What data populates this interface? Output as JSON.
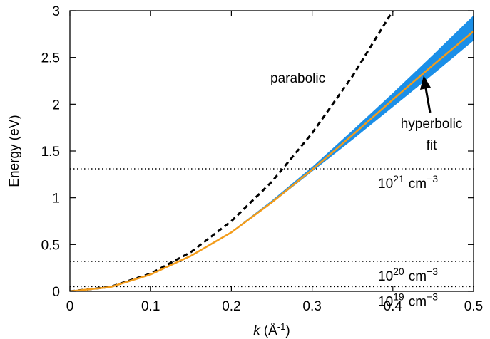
{
  "chart_data": {
    "type": "line",
    "xlabel": {
      "symbol": "k",
      "open": "(Å",
      "exponent": "-1",
      "close": ")"
    },
    "ylabel": "Energy (eV)",
    "xlim": [
      0,
      0.5
    ],
    "ylim": [
      0,
      3
    ],
    "xticks": [
      0,
      0.1,
      0.2,
      0.3,
      0.4,
      0.5
    ],
    "yticks": [
      0,
      0.5,
      1,
      1.5,
      2,
      2.5,
      3
    ],
    "series": [
      {
        "name": "parabolic",
        "color": "#000000",
        "dashed": true,
        "x": [
          0,
          0.05,
          0.1,
          0.15,
          0.2,
          0.25,
          0.3,
          0.35,
          0.4
        ],
        "values": [
          0,
          0.047,
          0.19,
          0.42,
          0.75,
          1.17,
          1.69,
          2.3,
          3.0
        ]
      },
      {
        "name": "hyperbolic fit",
        "color": "#f39c1a",
        "band_color": "#1b8fe8",
        "x": [
          0,
          0.05,
          0.1,
          0.15,
          0.2,
          0.25,
          0.3,
          0.35,
          0.4,
          0.45,
          0.5
        ],
        "values": [
          0,
          0.045,
          0.18,
          0.38,
          0.63,
          0.95,
          1.3,
          1.67,
          2.05,
          2.42,
          2.78
        ],
        "band_x": [
          0.2,
          0.25,
          0.3,
          0.35,
          0.4,
          0.45,
          0.5
        ],
        "band_lower": [
          0.63,
          0.94,
          1.28,
          1.62,
          1.97,
          2.32,
          2.68
        ],
        "band_upper": [
          0.64,
          0.97,
          1.33,
          1.72,
          2.12,
          2.53,
          2.95
        ]
      }
    ],
    "reference_lines": [
      {
        "value": 1.31,
        "base": "10",
        "exponent": "21",
        "unit": "cm",
        "unit_exponent": "−3"
      },
      {
        "value": 0.32,
        "base": "10",
        "exponent": "20",
        "unit": "cm",
        "unit_exponent": "−3"
      },
      {
        "value": 0.05,
        "base": "10",
        "exponent": "19",
        "unit": "cm",
        "unit_exponent": "−3"
      }
    ],
    "annotations": {
      "parabolic": "parabolic",
      "hyperbolic": [
        "hyperbolic",
        "fit"
      ]
    }
  }
}
